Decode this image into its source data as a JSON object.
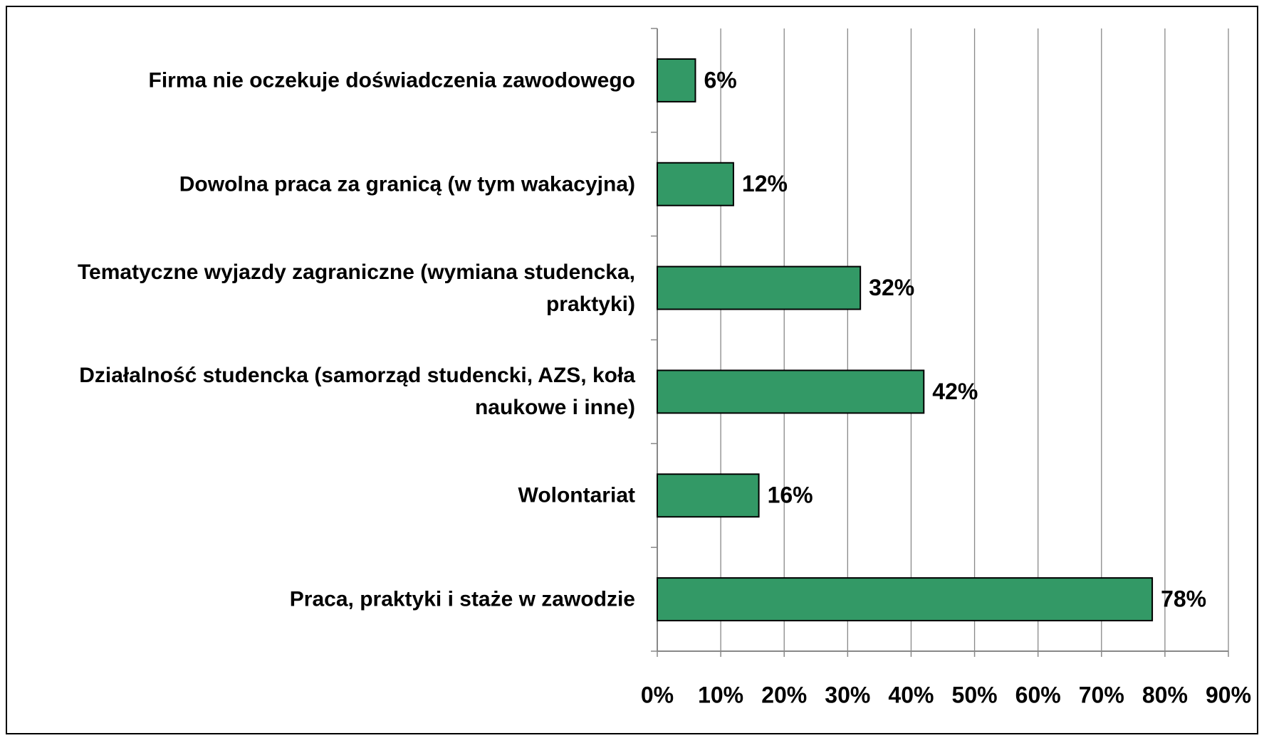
{
  "chart_data": {
    "type": "bar",
    "orientation": "horizontal",
    "categories": [
      "Firma nie oczekuje doświadczenia zawodowego",
      "Dowolna praca za granicą (w tym wakacyjna)",
      "Tematyczne wyjazdy zagraniczne (wymiana studencka, praktyki)",
      "Działalność studencka (samorząd studencki, AZS, koła naukowe i inne)",
      "Wolontariat",
      "Praca, praktyki i staże w zawodzie"
    ],
    "values": [
      6,
      12,
      32,
      42,
      16,
      78
    ],
    "value_labels": [
      "6%",
      "12%",
      "32%",
      "42%",
      "16%",
      "78%"
    ],
    "color": "#339966",
    "xlim": [
      0,
      90
    ],
    "xticks": [
      {
        "value": 0,
        "label": "0%"
      },
      {
        "value": 10,
        "label": "10%"
      },
      {
        "value": 20,
        "label": "20%"
      },
      {
        "value": 30,
        "label": "30%"
      },
      {
        "value": 40,
        "label": "40%"
      },
      {
        "value": 50,
        "label": "50%"
      },
      {
        "value": 60,
        "label": "60%"
      },
      {
        "value": 70,
        "label": "70%"
      },
      {
        "value": 80,
        "label": "80%"
      },
      {
        "value": 90,
        "label": "90%"
      }
    ],
    "grid": true
  }
}
